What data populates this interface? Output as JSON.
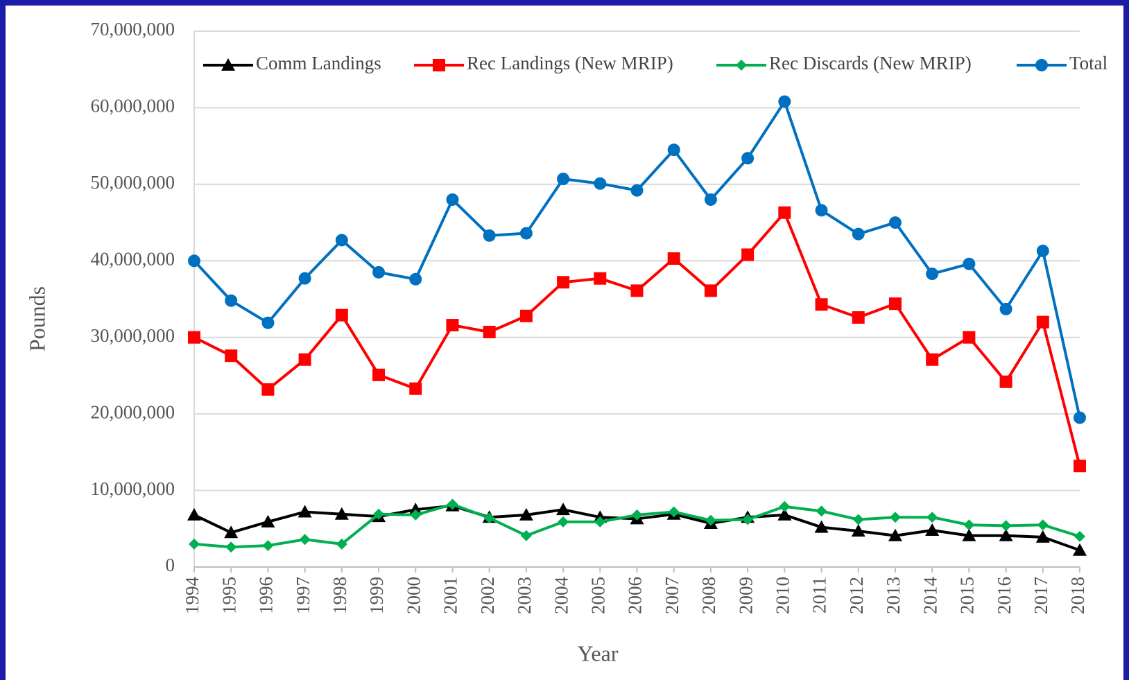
{
  "chart_data": {
    "type": "line",
    "x_label": "Year",
    "y_label": "Pounds",
    "categories": [
      "1994",
      "1995",
      "1996",
      "1997",
      "1998",
      "1999",
      "2000",
      "2001",
      "2002",
      "2003",
      "2004",
      "2005",
      "2006",
      "2007",
      "2008",
      "2009",
      "2010",
      "2011",
      "2012",
      "2013",
      "2014",
      "2015",
      "2016",
      "2017",
      "2018"
    ],
    "ylim": [
      0,
      70000000
    ],
    "yticks": [
      0,
      {
        "value": 10000000,
        "label": "10,000,000"
      },
      {
        "value": 20000000,
        "label": "20,000,000"
      },
      {
        "value": 30000000,
        "label": "30,000,000"
      },
      {
        "value": 40000000,
        "label": "40,000,000"
      },
      {
        "value": 50000000,
        "label": "50,000,000"
      },
      {
        "value": 60000000,
        "label": "60,000,000"
      },
      {
        "value": 70000000,
        "label": "70,000,000"
      }
    ],
    "grid": true,
    "legend": "top",
    "series": [
      {
        "name": "Comm Landings",
        "color": "#000000",
        "marker": "triangle",
        "values": [
          6800000,
          4500000,
          5900000,
          7200000,
          6900000,
          6600000,
          7500000,
          8000000,
          6500000,
          6800000,
          7500000,
          6500000,
          6300000,
          6900000,
          5700000,
          6500000,
          6800000,
          5200000,
          4700000,
          4100000,
          4800000,
          4100000,
          4100000,
          3900000,
          2200000
        ]
      },
      {
        "name": "Rec Landings (New MRIP)",
        "color": "#ff0000",
        "marker": "square",
        "values": [
          30000000,
          27600000,
          23200000,
          27100000,
          32900000,
          25100000,
          23300000,
          31600000,
          30700000,
          32800000,
          37200000,
          37700000,
          36100000,
          40300000,
          36100000,
          40800000,
          46300000,
          34300000,
          32600000,
          34400000,
          27100000,
          30000000,
          24200000,
          32000000,
          13200000
        ]
      },
      {
        "name": "Rec Discards (New MRIP)",
        "color": "#00b050",
        "marker": "diamond",
        "values": [
          3000000,
          2600000,
          2800000,
          3600000,
          3000000,
          6900000,
          6800000,
          8200000,
          6400000,
          4100000,
          5900000,
          5900000,
          6800000,
          7200000,
          6100000,
          6200000,
          7900000,
          7300000,
          6200000,
          6500000,
          6500000,
          5500000,
          5400000,
          5500000,
          4000000
        ]
      },
      {
        "name": "Total",
        "color": "#0070c0",
        "marker": "circle",
        "values": [
          40000000,
          34800000,
          31900000,
          37700000,
          42700000,
          38500000,
          37600000,
          48000000,
          43300000,
          43600000,
          50700000,
          50100000,
          49200000,
          54500000,
          48000000,
          53400000,
          60800000,
          46600000,
          43500000,
          45000000,
          38300000,
          39600000,
          33700000,
          41300000,
          19500000
        ]
      }
    ]
  }
}
